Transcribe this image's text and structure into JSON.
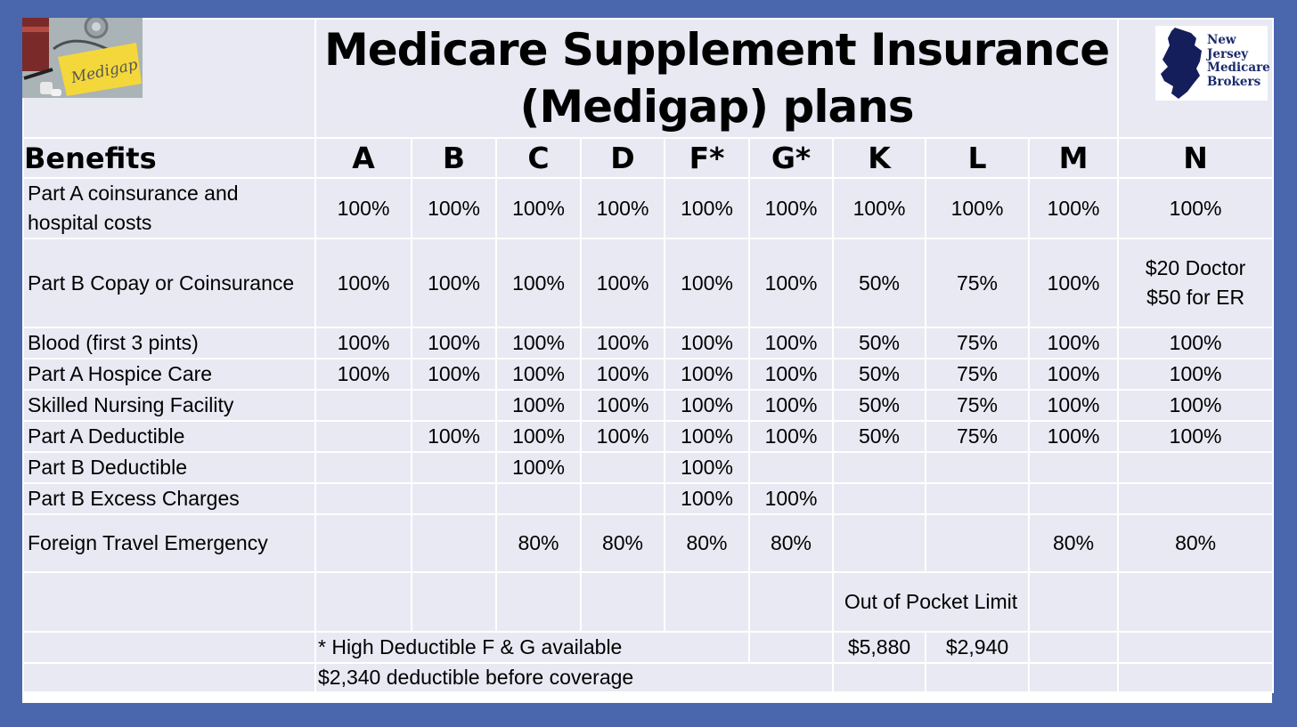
{
  "title": {
    "line1": "Medicare Supplement Insurance",
    "line2": "(Medigap) plans"
  },
  "thumbnail": {
    "note_text": "Medigap"
  },
  "logo": {
    "line1": "New",
    "line2": "Jersey",
    "line3": "Medicare",
    "line4": "Brokers",
    "color": "#1b2a6b"
  },
  "table": {
    "header": [
      "Benefits",
      "A",
      "B",
      "C",
      "D",
      "F*",
      "G*",
      "K",
      "L",
      "M",
      "N"
    ],
    "rows": [
      {
        "label": "Part A coinsurance and hospital costs",
        "values": [
          "100%",
          "100%",
          "100%",
          "100%",
          "100%",
          "100%",
          "100%",
          "100%",
          "100%",
          "100%"
        ]
      },
      {
        "label": "Part B Copay or Coinsurance",
        "values": [
          "100%",
          "100%",
          "100%",
          "100%",
          "100%",
          "100%",
          "50%",
          "75%",
          "100%",
          "$20 Doctor $50 for ER"
        ]
      },
      {
        "label": "Blood (first 3 pints)",
        "values": [
          "100%",
          "100%",
          "100%",
          "100%",
          "100%",
          "100%",
          "50%",
          "75%",
          "100%",
          "100%"
        ]
      },
      {
        "label": "Part A Hospice Care",
        "values": [
          "100%",
          "100%",
          "100%",
          "100%",
          "100%",
          "100%",
          "50%",
          "75%",
          "100%",
          "100%"
        ]
      },
      {
        "label": "Skilled Nursing Facility",
        "values": [
          "",
          "",
          "100%",
          "100%",
          "100%",
          "100%",
          "50%",
          "75%",
          "100%",
          "100%"
        ]
      },
      {
        "label": "Part A Deductible",
        "values": [
          "",
          "100%",
          "100%",
          "100%",
          "100%",
          "100%",
          "50%",
          "75%",
          "100%",
          "100%"
        ]
      },
      {
        "label": "Part B Deductible",
        "values": [
          "",
          "",
          "100%",
          "",
          "100%",
          "",
          "",
          "",
          "",
          ""
        ]
      },
      {
        "label": "Part B Excess Charges",
        "values": [
          "",
          "",
          "",
          "",
          "100%",
          "100%",
          "",
          "",
          "",
          ""
        ]
      },
      {
        "label": "Foreign Travel Emergency",
        "values": [
          "",
          "",
          "80%",
          "80%",
          "80%",
          "80%",
          "",
          "",
          "80%",
          "80%"
        ]
      }
    ],
    "oop_label": "Out of Pocket Limit",
    "oop_k": "$5,880",
    "oop_l": "$2,940",
    "note_high_deductible": "* High Deductible F & G available",
    "note_deductible": "$2,340 deductible before coverage"
  },
  "colors": {
    "frame": "#4a66ad",
    "cell": "#e8e9f2",
    "grid": "#ffffff"
  }
}
